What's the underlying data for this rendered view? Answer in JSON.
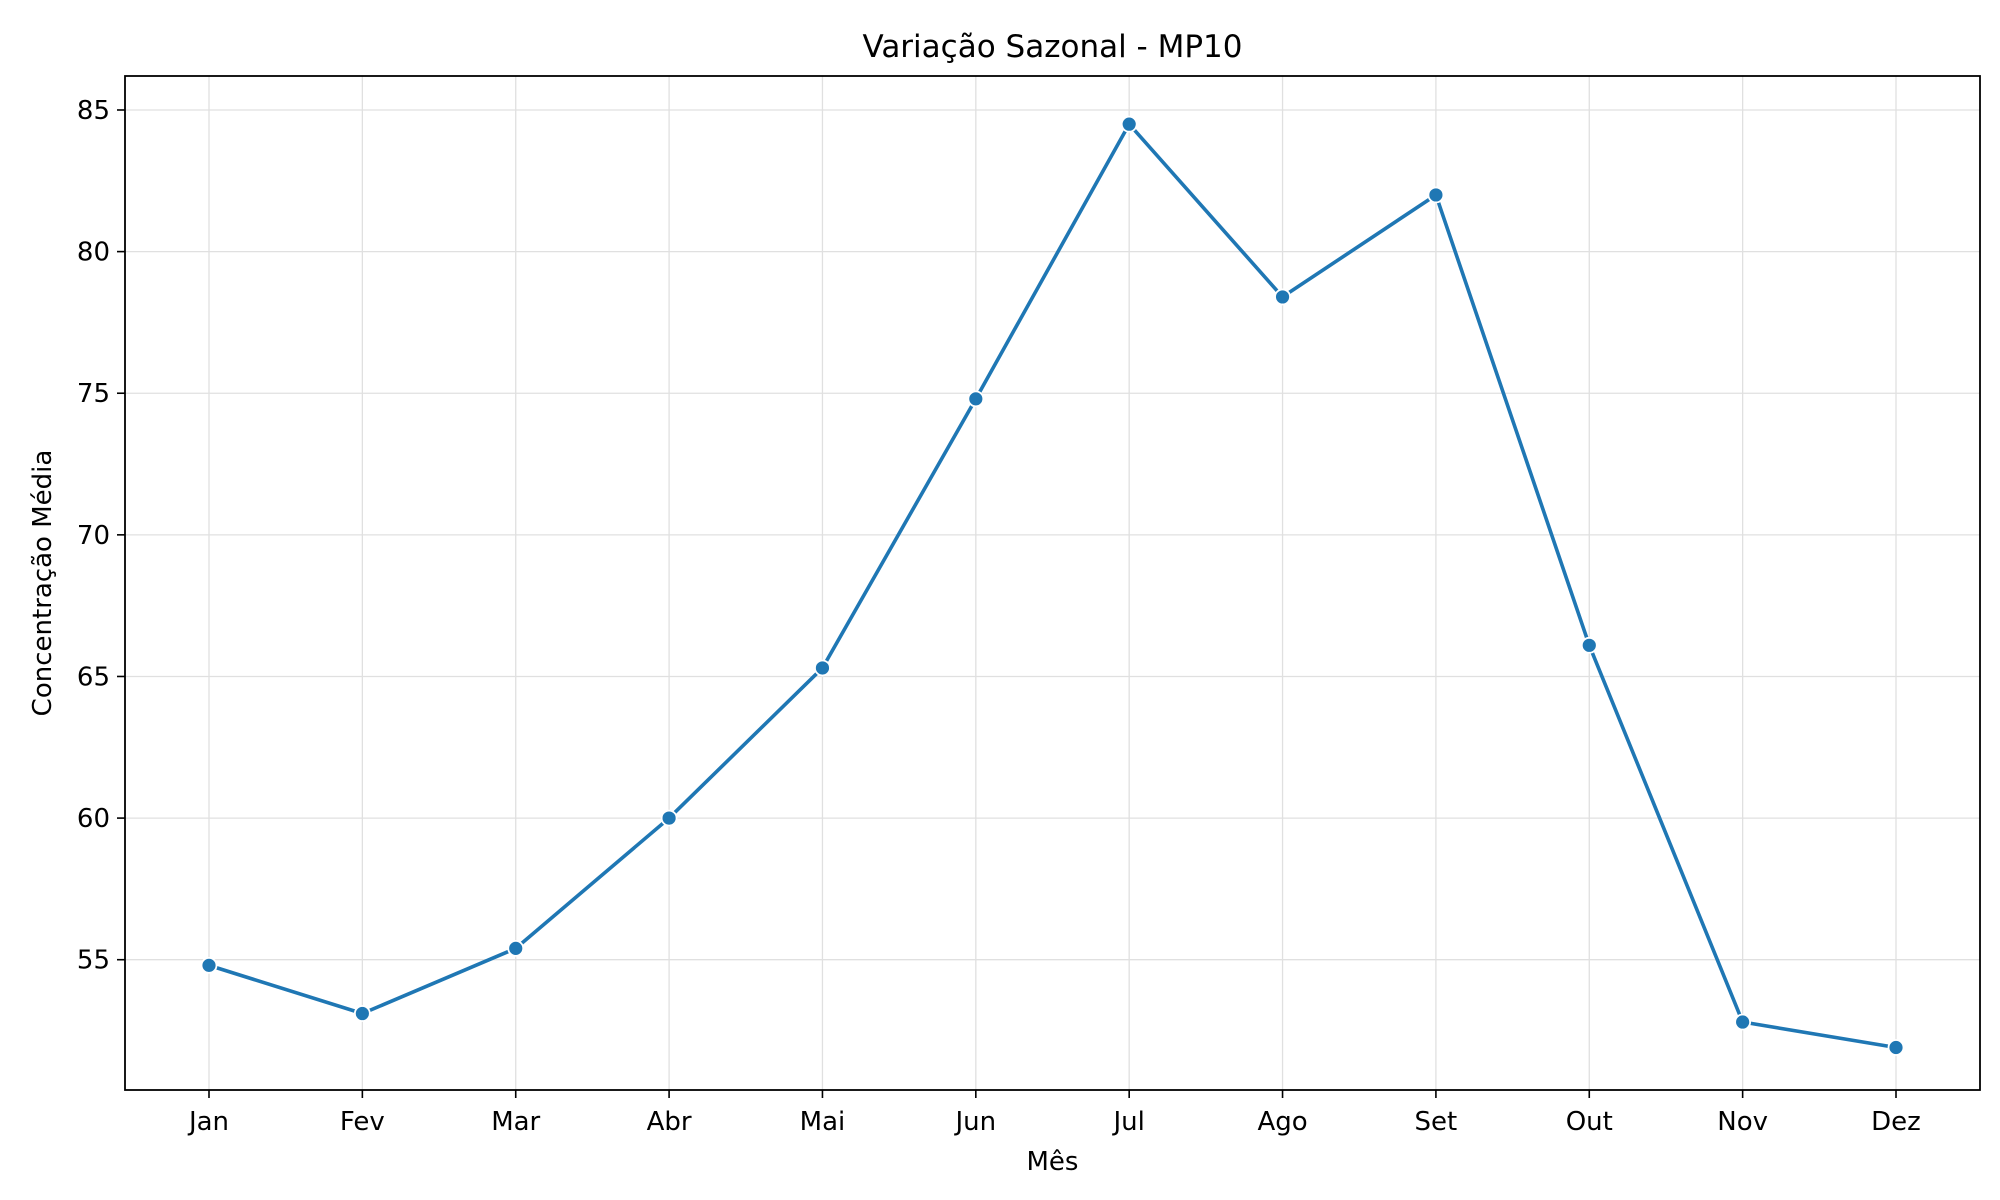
{
  "colors": {
    "line": "#1f77b4",
    "marker_edge": "#ffffff",
    "grid": "#e0e0e0",
    "axis": "#000000"
  },
  "chart_data": {
    "type": "line",
    "title": "Variação Sazonal - MP10",
    "xlabel": "Mês",
    "ylabel": "Concentração Média",
    "categories": [
      "Jan",
      "Fev",
      "Mar",
      "Abr",
      "Mai",
      "Jun",
      "Jul",
      "Ago",
      "Set",
      "Out",
      "Nov",
      "Dez"
    ],
    "series": [
      {
        "values": [
          54.8,
          53.1,
          55.4,
          60.0,
          65.3,
          74.8,
          84.5,
          78.4,
          82.0,
          66.1,
          52.8,
          51.9
        ]
      }
    ],
    "ylim": [
      50.4,
      86.2
    ],
    "yticks": [
      55,
      60,
      65,
      70,
      75,
      80,
      85
    ],
    "grid": true,
    "markers": true,
    "legend": "none"
  }
}
